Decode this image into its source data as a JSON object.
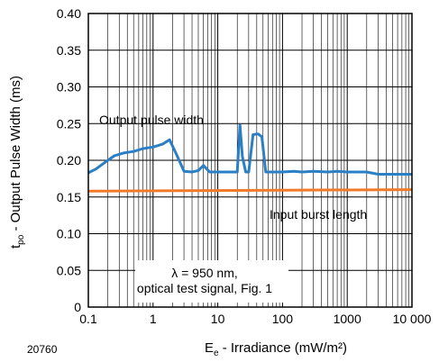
{
  "figure_id": "20760",
  "chart_data": {
    "type": "line",
    "xlabel_main": "E",
    "xlabel_sub": "e",
    "xlabel_rest": " - Irradiance (mW/m²)",
    "ylabel_main": "t",
    "ylabel_sub": "po",
    "ylabel_rest": " - Output Pulse Width (ms)",
    "xscale": "log",
    "xlim": [
      0.1,
      10000
    ],
    "ylim": [
      0,
      0.4
    ],
    "grid": true,
    "x_ticks": [
      0.1,
      1,
      10,
      100,
      1000,
      10000
    ],
    "x_tick_labels": [
      "0.1",
      "1",
      "10",
      "100",
      "1000",
      "10 000"
    ],
    "y_ticks": [
      0,
      0.05,
      0.1,
      0.15,
      0.2,
      0.25,
      0.3,
      0.35,
      0.4
    ],
    "y_tick_labels": [
      "0",
      "0.05",
      "0.10",
      "0.15",
      "0.20",
      "0.25",
      "0.30",
      "0.35",
      "0.40"
    ],
    "series": [
      {
        "color": "#2b7fc4",
        "x": [
          0.1,
          0.13,
          0.18,
          0.25,
          0.35,
          0.5,
          0.7,
          1.0,
          1.4,
          1.8,
          2.3,
          3.0,
          4.0,
          5.0,
          6.0,
          7.5,
          10,
          15,
          20,
          22,
          24,
          27,
          30,
          35,
          42,
          48,
          55,
          70,
          100,
          150,
          200,
          300,
          500,
          700,
          1000,
          1500,
          2000,
          3000,
          5000,
          10000
        ],
        "y": [
          0.183,
          0.188,
          0.197,
          0.206,
          0.21,
          0.212,
          0.216,
          0.218,
          0.222,
          0.228,
          0.208,
          0.185,
          0.184,
          0.186,
          0.193,
          0.184,
          0.184,
          0.184,
          0.184,
          0.248,
          0.205,
          0.184,
          0.184,
          0.235,
          0.236,
          0.232,
          0.184,
          0.184,
          0.184,
          0.185,
          0.184,
          0.185,
          0.184,
          0.185,
          0.184,
          0.184,
          0.184,
          0.181,
          0.181,
          0.181
        ]
      },
      {
        "color": "#f07a2a",
        "x": [
          0.1,
          10000
        ],
        "y": [
          0.158,
          0.16
        ]
      }
    ],
    "annotations": [
      {
        "text": "Output pulse width"
      },
      {
        "text": "Input burst length"
      },
      {
        "text": "λ = 950 nm,"
      },
      {
        "text": "optical test signal, Fig. 1"
      }
    ]
  }
}
